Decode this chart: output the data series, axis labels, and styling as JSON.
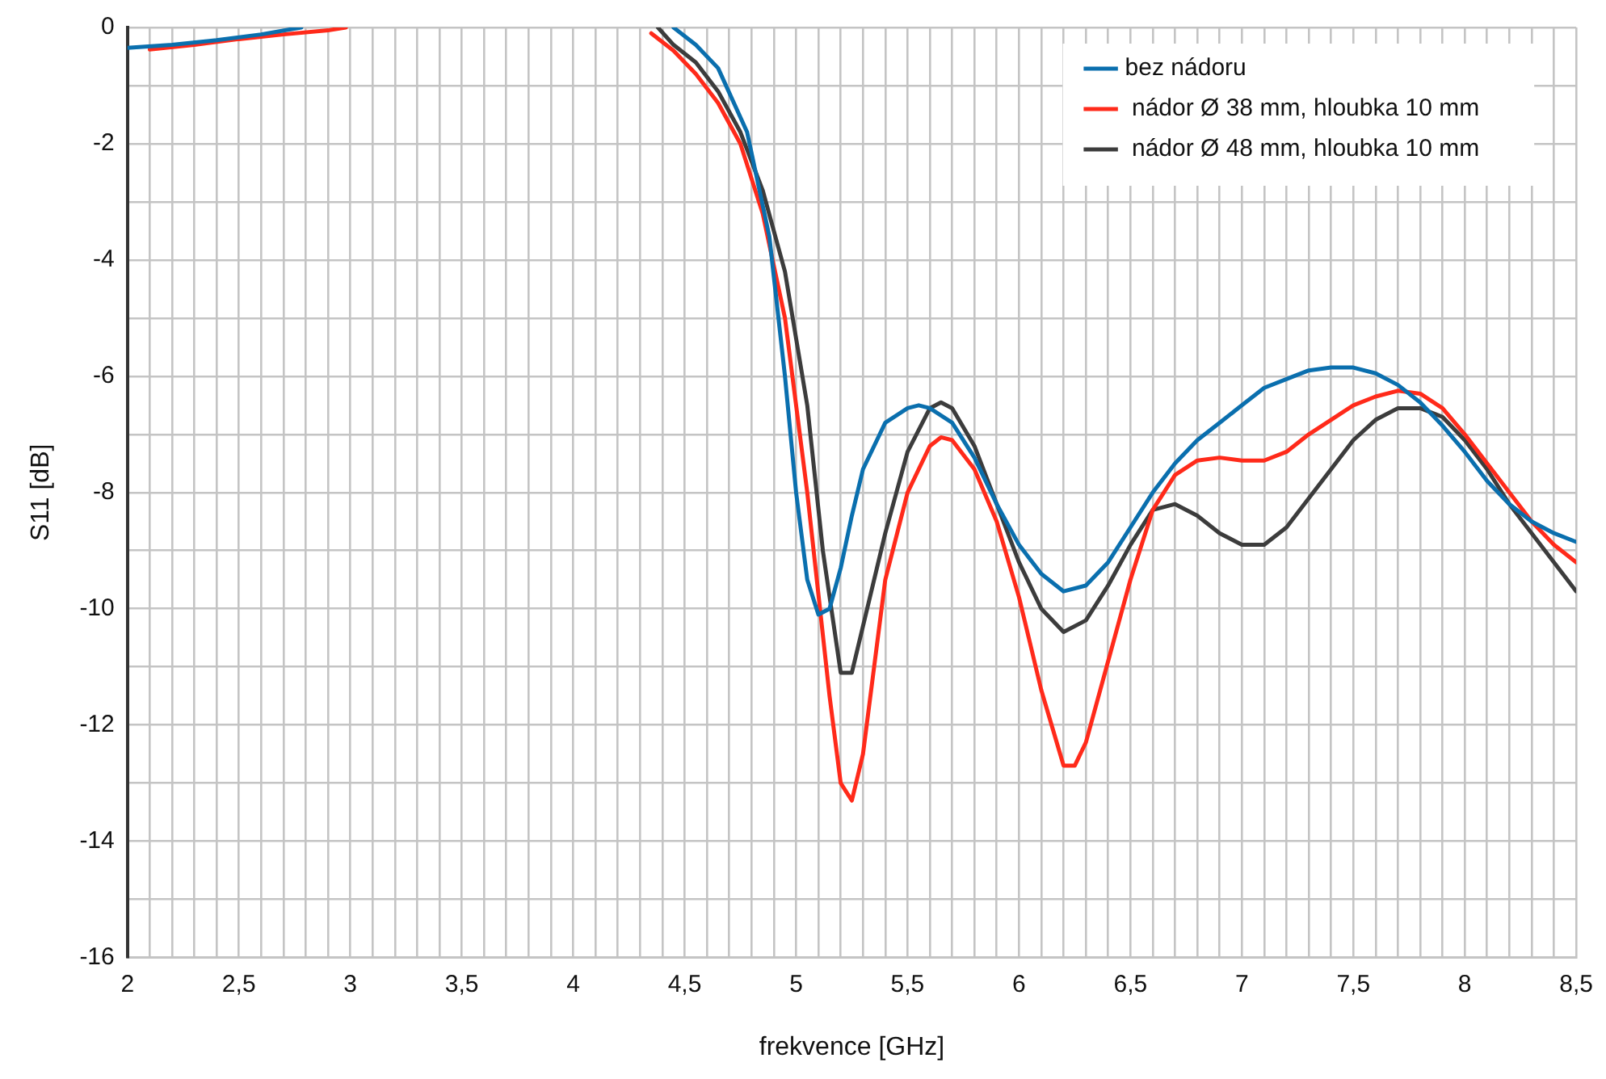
{
  "chart_data": {
    "type": "line",
    "xlabel": "frekvence [GHz]",
    "ylabel": "S11 [dB]",
    "xlim": [
      2,
      8.5
    ],
    "ylim": [
      -16,
      0
    ],
    "xticks": [
      2,
      {
        "value": 2.1,
        "label": null
      },
      {
        "value": 2.2,
        "label": null
      },
      {
        "value": 2.3,
        "label": null
      },
      {
        "value": 2.4,
        "label": null
      },
      {
        "value": 2.5,
        "label": "2,5"
      },
      {
        "value": 2.6,
        "label": null
      },
      {
        "value": 2.7,
        "label": null
      },
      {
        "value": 2.8,
        "label": null
      },
      {
        "value": 2.9,
        "label": null
      },
      3,
      {
        "value": 3.1,
        "label": null
      },
      {
        "value": 3.2,
        "label": null
      },
      {
        "value": 3.3,
        "label": null
      },
      {
        "value": 3.4,
        "label": null
      },
      {
        "value": 3.5,
        "label": "3,5"
      },
      {
        "value": 3.6,
        "label": null
      },
      {
        "value": 3.7,
        "label": null
      },
      {
        "value": 3.8,
        "label": null
      },
      {
        "value": 3.9,
        "label": null
      },
      4,
      {
        "value": 4.1,
        "label": null
      },
      {
        "value": 4.2,
        "label": null
      },
      {
        "value": 4.3,
        "label": null
      },
      {
        "value": 4.4,
        "label": null
      },
      {
        "value": 4.5,
        "label": "4,5"
      },
      {
        "value": 4.6,
        "label": null
      },
      {
        "value": 4.7,
        "label": null
      },
      {
        "value": 4.8,
        "label": null
      },
      {
        "value": 4.9,
        "label": null
      },
      5,
      {
        "value": 5.1,
        "label": null
      },
      {
        "value": 5.2,
        "label": null
      },
      {
        "value": 5.3,
        "label": null
      },
      {
        "value": 5.4,
        "label": null
      },
      {
        "value": 5.5,
        "label": "5,5"
      },
      {
        "value": 5.6,
        "label": null
      },
      {
        "value": 5.7,
        "label": null
      },
      {
        "value": 5.8,
        "label": null
      },
      {
        "value": 5.9,
        "label": null
      },
      6,
      {
        "value": 6.1,
        "label": null
      },
      {
        "value": 6.2,
        "label": null
      },
      {
        "value": 6.3,
        "label": null
      },
      {
        "value": 6.4,
        "label": null
      },
      {
        "value": 6.5,
        "label": "6,5"
      },
      {
        "value": 6.6,
        "label": null
      },
      {
        "value": 6.7,
        "label": null
      },
      {
        "value": 6.8,
        "label": null
      },
      {
        "value": 6.9,
        "label": null
      },
      7,
      {
        "value": 7.1,
        "label": null
      },
      {
        "value": 7.2,
        "label": null
      },
      {
        "value": 7.3,
        "label": null
      },
      {
        "value": 7.4,
        "label": null
      },
      {
        "value": 7.5,
        "label": "7,5"
      },
      {
        "value": 7.6,
        "label": null
      },
      {
        "value": 7.7,
        "label": null
      },
      {
        "value": 7.8,
        "label": null
      },
      {
        "value": 7.9,
        "label": null
      },
      8,
      {
        "value": 8.1,
        "label": null
      },
      {
        "value": 8.2,
        "label": null
      },
      {
        "value": 8.3,
        "label": null
      },
      {
        "value": 8.4,
        "label": null
      },
      {
        "value": 8.5,
        "label": "8,5"
      }
    ],
    "yticks": [
      -16,
      {
        "value": -15,
        "label": null
      },
      -14,
      {
        "value": -13,
        "label": null
      },
      -12,
      {
        "value": -11,
        "label": null
      },
      -10,
      {
        "value": -9,
        "label": null
      },
      -8,
      {
        "value": -7,
        "label": null
      },
      -6,
      {
        "value": -5,
        "label": null
      },
      -4,
      {
        "value": -3,
        "label": null
      },
      -2,
      {
        "value": -1,
        "label": null
      },
      0
    ],
    "grid": true,
    "legend": "top right",
    "marker": "none",
    "line_style": "solid",
    "series": [
      {
        "name": "bez nádoru",
        "color": "#0a6fae",
        "x": [
          2.0,
          2.2,
          2.4,
          2.6,
          2.78,
          3.5,
          4.45,
          4.55,
          4.65,
          4.78,
          4.88,
          4.95,
          5.0,
          5.05,
          5.1,
          5.15,
          5.2,
          5.25,
          5.3,
          5.4,
          5.5,
          5.55,
          5.6,
          5.7,
          5.8,
          5.9,
          6.0,
          6.1,
          6.2,
          6.3,
          6.4,
          6.5,
          6.6,
          6.7,
          6.8,
          6.9,
          7.0,
          7.1,
          7.2,
          7.3,
          7.4,
          7.5,
          7.6,
          7.7,
          7.8,
          7.9,
          8.0,
          8.1,
          8.2,
          8.3,
          8.4,
          8.5
        ],
        "values": [
          -0.35,
          -0.3,
          -0.22,
          -0.12,
          0,
          null,
          0,
          -0.3,
          -0.7,
          -1.8,
          -3.6,
          -6.0,
          -8.0,
          -9.5,
          -10.1,
          -10.0,
          -9.3,
          -8.4,
          -7.6,
          -6.8,
          -6.55,
          -6.5,
          -6.55,
          -6.8,
          -7.4,
          -8.2,
          -8.9,
          -9.4,
          -9.7,
          -9.6,
          -9.2,
          -8.6,
          -8.0,
          -7.5,
          -7.1,
          -6.8,
          -6.5,
          -6.2,
          -6.05,
          -5.9,
          -5.85,
          -5.85,
          -5.95,
          -6.15,
          -6.45,
          -6.85,
          -7.3,
          -7.8,
          -8.2,
          -8.5,
          -8.7,
          -8.85
        ]
      },
      {
        "name": " nádor Ø 38 mm, hloubka 10 mm",
        "color": "#ff2a1a",
        "x": [
          2.1,
          2.3,
          2.5,
          2.7,
          2.9,
          2.98,
          3.5,
          4.35,
          4.45,
          4.55,
          4.65,
          4.75,
          4.85,
          4.95,
          5.05,
          5.15,
          5.2,
          5.25,
          5.3,
          5.35,
          5.4,
          5.5,
          5.6,
          5.65,
          5.7,
          5.8,
          5.9,
          6.0,
          6.1,
          6.2,
          6.25,
          6.3,
          6.4,
          6.5,
          6.6,
          6.7,
          6.8,
          6.9,
          7.0,
          7.1,
          7.2,
          7.3,
          7.4,
          7.5,
          7.6,
          7.7,
          7.8,
          7.9,
          8.0,
          8.1,
          8.2,
          8.3,
          8.4,
          8.5
        ],
        "values": [
          -0.38,
          -0.3,
          -0.2,
          -0.12,
          -0.05,
          0,
          null,
          -0.1,
          -0.4,
          -0.8,
          -1.3,
          -2.0,
          -3.2,
          -5.0,
          -8.0,
          -11.5,
          -13.0,
          -13.3,
          -12.5,
          -11.0,
          -9.5,
          -8.0,
          -7.2,
          -7.05,
          -7.1,
          -7.6,
          -8.5,
          -9.8,
          -11.4,
          -12.7,
          -12.7,
          -12.3,
          -10.9,
          -9.5,
          -8.3,
          -7.7,
          -7.45,
          -7.4,
          -7.45,
          -7.45,
          -7.3,
          -7.0,
          -6.75,
          -6.5,
          -6.35,
          -6.25,
          -6.3,
          -6.55,
          -7.0,
          -7.5,
          -8.0,
          -8.5,
          -8.9,
          -9.2
        ]
      },
      {
        "name": " nádor Ø 48 mm, hloubka 10 mm",
        "color": "#3c3c3c",
        "x": [
          4.38,
          4.45,
          4.55,
          4.65,
          4.75,
          4.85,
          4.95,
          5.05,
          5.12,
          5.2,
          5.25,
          5.3,
          5.4,
          5.5,
          5.6,
          5.65,
          5.7,
          5.8,
          5.9,
          6.0,
          6.1,
          6.2,
          6.3,
          6.4,
          6.5,
          6.6,
          6.7,
          6.8,
          6.9,
          7.0,
          7.1,
          7.2,
          7.3,
          7.4,
          7.5,
          7.6,
          7.7,
          7.8,
          7.9,
          8.0,
          8.1,
          8.2,
          8.3,
          8.4,
          8.5
        ],
        "values": [
          0,
          -0.3,
          -0.6,
          -1.1,
          -1.8,
          -2.8,
          -4.2,
          -6.5,
          -9.0,
          -11.1,
          -11.1,
          -10.3,
          -8.7,
          -7.3,
          -6.55,
          -6.45,
          -6.55,
          -7.2,
          -8.2,
          -9.2,
          -10.0,
          -10.4,
          -10.2,
          -9.6,
          -8.9,
          -8.3,
          -8.2,
          -8.4,
          -8.7,
          -8.9,
          -8.9,
          -8.6,
          -8.1,
          -7.6,
          -7.1,
          -6.75,
          -6.55,
          -6.55,
          -6.7,
          -7.1,
          -7.6,
          -8.2,
          -8.7,
          -9.2,
          -9.7
        ]
      }
    ]
  }
}
